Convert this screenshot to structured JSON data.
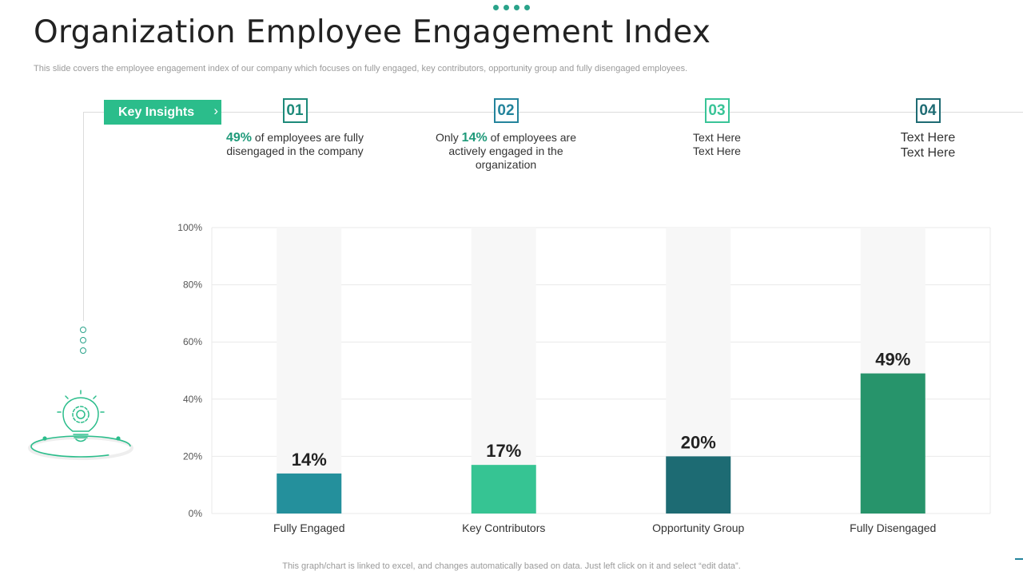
{
  "slide": {
    "title": "Organization Employee Engagement Index",
    "subtitle": "This slide covers the employee engagement index of our company which focuses on fully engaged, key contributors, opportunity group and fully disengaged employees.",
    "footer": "This graph/chart is linked to excel,  and changes automatically based on data. Just left click on it and select “edit data”."
  },
  "key_insights": {
    "label": "Key Insights",
    "chevron": "›",
    "items": [
      {
        "number": "01",
        "highlight": "49%",
        "text_after": " of employees are fully disengaged in the company"
      },
      {
        "number": "02",
        "text_before": "Only ",
        "highlight": "14%",
        "text_after": " of employees are actively engaged in the organization"
      },
      {
        "number": "03",
        "line1": "Text Here",
        "line2": "Text Here"
      },
      {
        "number": "04",
        "line1": "Text Here",
        "line2": "Text Here"
      }
    ]
  },
  "chart_data": {
    "type": "bar",
    "title": "",
    "xlabel": "",
    "ylabel": "",
    "categories": [
      "Fully Engaged",
      "Key Contributors",
      "Opportunity Group",
      "Fully Disengaged"
    ],
    "values": [
      14,
      17,
      20,
      49
    ],
    "data_labels": [
      "14%",
      "17%",
      "20%",
      "49%"
    ],
    "ylim": [
      0,
      100
    ],
    "yticks": [
      0,
      20,
      40,
      60,
      80,
      100
    ],
    "ytick_labels": [
      "0%",
      "20%",
      "40%",
      "60%",
      "80%",
      "100%"
    ],
    "grid": true,
    "colors": [
      "#24909c",
      "#36c493",
      "#1d6b73",
      "#27946b"
    ],
    "track_color": "#f7f7f7"
  },
  "colors": {
    "accent": "#2bbd8b",
    "title": "#222222"
  }
}
